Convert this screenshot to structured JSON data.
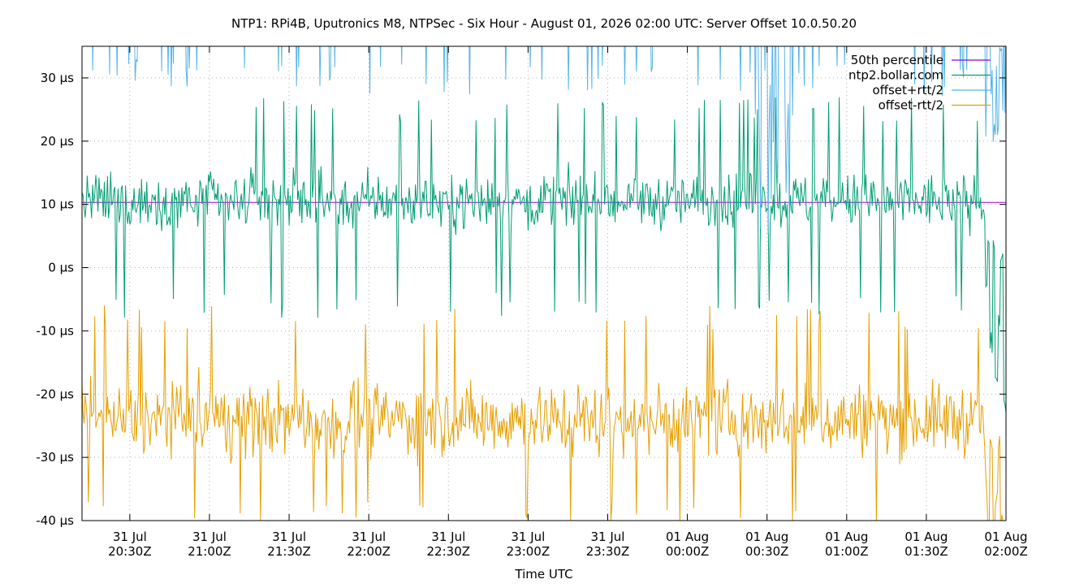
{
  "chart_data": {
    "type": "line",
    "title": "NTP1: RPi4B, Uputronics M8, NTPSec - Six Hour - August 01, 2026 02:00 UTC: Server Offset 10.0.50.20",
    "xlabel": "Time UTC",
    "ylabel": "",
    "x_unit": "minutes",
    "xlim": [
      -348,
      0
    ],
    "ylim": [
      -40,
      35
    ],
    "y_ticks": [
      {
        "value": 30,
        "label": "30 µs"
      },
      {
        "value": 20,
        "label": "20 µs"
      },
      {
        "value": 10,
        "label": "10 µs"
      },
      {
        "value": 0,
        "label": "0 µs"
      },
      {
        "value": -10,
        "label": "-10 µs"
      },
      {
        "value": -20,
        "label": "-20 µs"
      },
      {
        "value": -30,
        "label": "-30 µs"
      },
      {
        "value": -40,
        "label": "-40 µs"
      }
    ],
    "x_ticks": [
      {
        "value": -330,
        "line1": "31 Jul",
        "line2": "20:30Z"
      },
      {
        "value": -300,
        "line1": "31 Jul",
        "line2": "21:00Z"
      },
      {
        "value": -270,
        "line1": "31 Jul",
        "line2": "21:30Z"
      },
      {
        "value": -240,
        "line1": "31 Jul",
        "line2": "22:00Z"
      },
      {
        "value": -210,
        "line1": "31 Jul",
        "line2": "22:30Z"
      },
      {
        "value": -180,
        "line1": "31 Jul",
        "line2": "23:00Z"
      },
      {
        "value": -150,
        "line1": "31 Jul",
        "line2": "23:30Z"
      },
      {
        "value": -120,
        "line1": "01 Aug",
        "line2": "00:00Z"
      },
      {
        "value": -90,
        "line1": "01 Aug",
        "line2": "00:30Z"
      },
      {
        "value": -60,
        "line1": "01 Aug",
        "line2": "01:00Z"
      },
      {
        "value": -30,
        "line1": "01 Aug",
        "line2": "01:30Z"
      },
      {
        "value": 0,
        "line1": "01 Aug",
        "line2": "02:00Z"
      }
    ],
    "grid": true,
    "legend_position": "top-right",
    "series": [
      {
        "name": "50th percentile",
        "color": "#9400d3",
        "style": "constant",
        "value": 10.3
      },
      {
        "name": "ntp2.bollar.com",
        "color": "#009e73",
        "style": "noise",
        "center": 10.5,
        "spread": 4.2,
        "spike_max": 27,
        "spike_min": -8,
        "samples_per_minute": 2.5,
        "tail": [
          -2,
          5,
          -12,
          3,
          -18,
          -8,
          0,
          -22
        ]
      },
      {
        "name": "offset+rtt/2",
        "color": "#56b4e9",
        "style": "clipped_spikes",
        "center": 43,
        "spread": 5,
        "samples_per_minute": 2.5
      },
      {
        "name": "offset-rtt/2",
        "color": "#e69f00",
        "style": "noise",
        "center": -24,
        "spread": 5.5,
        "spike_max": -6,
        "spike_min": -41,
        "samples_per_minute": 2.5,
        "tail": [
          -35,
          -45,
          -28,
          -42,
          -38,
          -27,
          -40,
          -45
        ]
      }
    ]
  }
}
